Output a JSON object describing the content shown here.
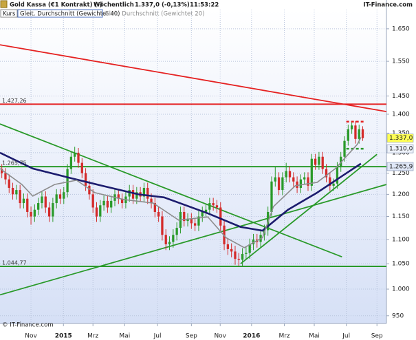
{
  "chart_data": {
    "type": "candlestick",
    "header": {
      "instrument": "Gold Kassa (€1 Kontrakt) (-)",
      "period": "Wöchentlich",
      "quote": "1.337,0 (-0,13%)",
      "time": "11:53:22"
    },
    "watermark": "IT-Finance.com",
    "copyright": "© IT-Finance.com",
    "log_scale": true,
    "grid": true,
    "up_color": "#2a9a2a",
    "down_color": "#d42a2a",
    "xlim": [
      0,
      106
    ],
    "xticks": [
      {
        "value": 8.5,
        "label": "Nov"
      },
      {
        "value": 17.4,
        "label": "2015"
      },
      {
        "value": 25.5,
        "label": "Mrz"
      },
      {
        "value": 34.2,
        "label": "Mai"
      },
      {
        "value": 43.2,
        "label": "Jul"
      },
      {
        "value": 52.5,
        "label": "Sep"
      },
      {
        "value": 60.4,
        "label": "Nov"
      },
      {
        "value": 69,
        "label": "2016"
      },
      {
        "value": 78,
        "label": "Mrz"
      },
      {
        "value": 86.2,
        "label": "Mai"
      },
      {
        "value": 95,
        "label": "Jul"
      },
      {
        "value": 103.4,
        "label": "Sep"
      }
    ],
    "ylim": [
      936,
      1712
    ],
    "yticks": [
      {
        "value": 1650,
        "label": "1.650"
      },
      {
        "value": 1550,
        "label": "1.550"
      },
      {
        "value": 1450,
        "label": "1.450"
      },
      {
        "value": 1400,
        "label": "1.400"
      },
      {
        "value": 1350,
        "label": "1.350"
      },
      {
        "value": 1300,
        "label": "1.300"
      },
      {
        "value": 1250,
        "label": "1.250"
      },
      {
        "value": 1200,
        "label": "1.200"
      },
      {
        "value": 1150,
        "label": "1.150"
      },
      {
        "value": 1100,
        "label": "1.100"
      },
      {
        "value": 1050,
        "label": "1.050"
      },
      {
        "value": 1000,
        "label": "1.000"
      },
      950
    ],
    "series": [
      {
        "name": "Kurs",
        "type": "candlestick",
        "open": [
          1260,
          1250,
          1235,
          1215,
          1200,
          1210,
          1180,
          1190,
          1160,
          1150,
          1165,
          1180,
          1195,
          1170,
          1150,
          1180,
          1200,
          1190,
          1205,
          1260,
          1290,
          1300,
          1275,
          1250,
          1220,
          1200,
          1170,
          1150,
          1175,
          1185,
          1170,
          1185,
          1200,
          1190,
          1180,
          1195,
          1210,
          1190,
          1205,
          1195,
          1215,
          1190,
          1180,
          1160,
          1150,
          1110,
          1090,
          1095,
          1110,
          1125,
          1160,
          1140,
          1145,
          1135,
          1130,
          1150,
          1160,
          1165,
          1180,
          1175,
          1170,
          1130,
          1090,
          1080,
          1075,
          1060,
          1058,
          1070,
          1072,
          1090,
          1100,
          1095,
          1110,
          1120,
          1160,
          1230,
          1240,
          1210,
          1240,
          1255,
          1240,
          1230,
          1215,
          1235,
          1240,
          1220,
          1285,
          1270,
          1290,
          1260,
          1240,
          1220,
          1225,
          1265,
          1290,
          1330,
          1360,
          1370,
          1335,
          1360
        ],
        "high": [
          1272,
          1262,
          1247,
          1227,
          1222,
          1222,
          1202,
          1202,
          1172,
          1177,
          1192,
          1207,
          1207,
          1182,
          1192,
          1212,
          1212,
          1217,
          1272,
          1302,
          1315,
          1312,
          1287,
          1262,
          1232,
          1212,
          1182,
          1187,
          1197,
          1197,
          1197,
          1212,
          1212,
          1202,
          1207,
          1222,
          1222,
          1217,
          1217,
          1227,
          1227,
          1202,
          1192,
          1172,
          1162,
          1122,
          1107,
          1122,
          1137,
          1172,
          1172,
          1157,
          1157,
          1147,
          1162,
          1172,
          1177,
          1192,
          1192,
          1187,
          1182,
          1142,
          1102,
          1092,
          1087,
          1072,
          1082,
          1084,
          1102,
          1112,
          1112,
          1122,
          1132,
          1172,
          1242,
          1265,
          1252,
          1252,
          1275,
          1267,
          1252,
          1242,
          1247,
          1252,
          1252,
          1297,
          1297,
          1302,
          1302,
          1272,
          1252,
          1237,
          1277,
          1302,
          1342,
          1372,
          1378,
          1382,
          1372,
          1368
        ],
        "low": [
          1238,
          1223,
          1203,
          1188,
          1188,
          1168,
          1168,
          1148,
          1132,
          1138,
          1153,
          1168,
          1158,
          1138,
          1138,
          1168,
          1178,
          1178,
          1193,
          1248,
          1278,
          1263,
          1238,
          1208,
          1188,
          1158,
          1138,
          1138,
          1163,
          1158,
          1158,
          1173,
          1178,
          1168,
          1168,
          1183,
          1178,
          1178,
          1183,
          1183,
          1178,
          1168,
          1148,
          1138,
          1098,
          1078,
          1078,
          1083,
          1098,
          1113,
          1128,
          1128,
          1123,
          1118,
          1118,
          1138,
          1148,
          1153,
          1163,
          1158,
          1118,
          1078,
          1068,
          1063,
          1048,
          1046,
          1046,
          1058,
          1060,
          1078,
          1083,
          1083,
          1098,
          1108,
          1148,
          1218,
          1198,
          1198,
          1228,
          1228,
          1218,
          1203,
          1203,
          1223,
          1208,
          1208,
          1258,
          1258,
          1248,
          1228,
          1208,
          1208,
          1213,
          1253,
          1278,
          1318,
          1348,
          1323,
          1323,
          1330
        ],
        "close": [
          1250,
          1235,
          1215,
          1200,
          1210,
          1180,
          1190,
          1160,
          1150,
          1165,
          1180,
          1195,
          1170,
          1150,
          1180,
          1200,
          1190,
          1205,
          1260,
          1290,
          1300,
          1275,
          1250,
          1220,
          1200,
          1170,
          1150,
          1175,
          1185,
          1170,
          1185,
          1200,
          1190,
          1180,
          1195,
          1210,
          1190,
          1205,
          1195,
          1215,
          1190,
          1180,
          1160,
          1150,
          1110,
          1090,
          1095,
          1110,
          1125,
          1160,
          1140,
          1145,
          1135,
          1130,
          1150,
          1160,
          1165,
          1180,
          1175,
          1170,
          1130,
          1090,
          1080,
          1075,
          1060,
          1058,
          1070,
          1072,
          1090,
          1100,
          1095,
          1110,
          1120,
          1160,
          1230,
          1240,
          1210,
          1240,
          1255,
          1240,
          1230,
          1215,
          1235,
          1240,
          1220,
          1285,
          1270,
          1290,
          1260,
          1240,
          1220,
          1225,
          1265,
          1290,
          1330,
          1360,
          1370,
          1335,
          1360,
          1337
        ]
      },
      {
        "name": "Gleit. Durchschnitt (Gewichtet 40)",
        "type": "line",
        "color": "#1c1c6e",
        "x": [
          0,
          9,
          19,
          28,
          38,
          45,
          57,
          66,
          72,
          79,
          87,
          94,
          99
        ],
        "values": [
          1300,
          1261,
          1239,
          1220,
          1200,
          1193,
          1157,
          1127,
          1119,
          1165,
          1204,
          1244,
          1273
        ]
      },
      {
        "name": "Gleit. Durchschnitt (Gewichtet 20)",
        "type": "line",
        "color": "#8c8c8c",
        "x": [
          0,
          6,
          9,
          15,
          21,
          26,
          34,
          42,
          49,
          57,
          62,
          67,
          72,
          75,
          81,
          87,
          92,
          98,
          99
        ],
        "values": [
          1261,
          1223,
          1196,
          1223,
          1233,
          1204,
          1188,
          1180,
          1142,
          1149,
          1104,
          1083,
          1104,
          1172,
          1220,
          1228,
          1261,
          1321,
          1339
        ]
      }
    ],
    "trendlines": [
      {
        "color": "#e52222",
        "x": [
          0,
          106
        ],
        "values": [
          1600,
          1407
        ]
      },
      {
        "color": "#2a9a2a",
        "x": [
          0,
          93.8
        ],
        "values": [
          1374,
          1064
        ]
      },
      {
        "color": "#2a9a2a",
        "x": [
          0,
          106
        ],
        "values": [
          989,
          1223
        ]
      },
      {
        "color": "#2a9a2a",
        "x": [
          66,
          103.4
        ],
        "values": [
          1050,
          1296
        ]
      }
    ],
    "levels": [
      {
        "value": 1427.26,
        "label": "1.427,26",
        "color": "#e52222"
      },
      {
        "value": 1265.75,
        "label": "1.265,75",
        "color": "#2a9a2a"
      },
      {
        "value": 1044.77,
        "label": "1.044,77",
        "color": "#2a9a2a"
      }
    ],
    "dashed": [
      {
        "color": "#e52222",
        "x": [
          95,
          100
        ],
        "value": 1380
      },
      {
        "color": "#2a9a2a",
        "x": [
          95,
          100
        ],
        "value": 1310
      }
    ],
    "price_labels": [
      {
        "value": 1337.0,
        "label": "1.337,0",
        "color": "#ffff55"
      },
      {
        "value": 1310.0,
        "label": "1.310,0",
        "color": "#eef2fa"
      },
      {
        "value": 1265.9,
        "label": "1.265,9",
        "color": "#dfe7f7"
      }
    ]
  }
}
